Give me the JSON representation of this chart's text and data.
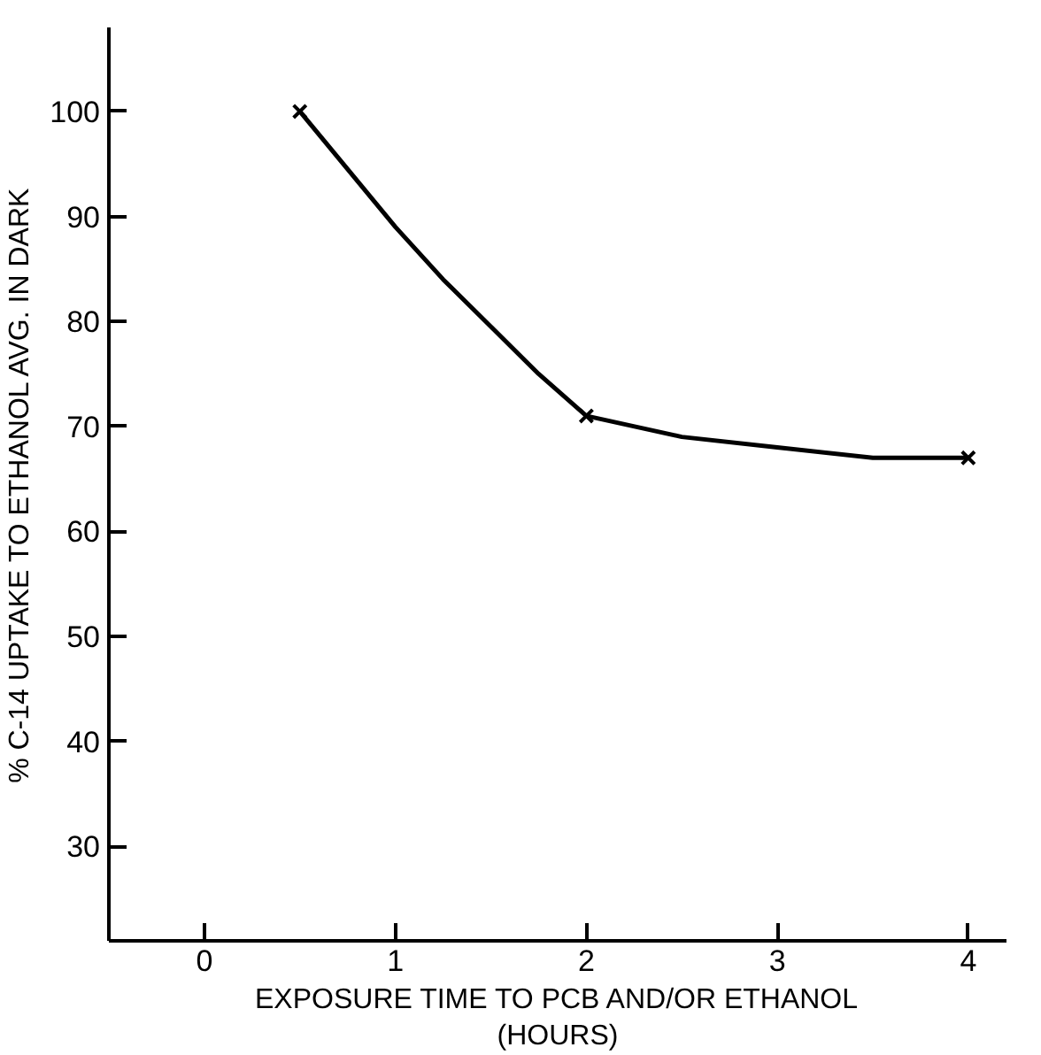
{
  "chart_data": {
    "type": "scatter",
    "xlabel": "EXPOSURE TIME TO PCB AND/OR ETHANOL\n(HOURS)",
    "ylabel": "% C-14 UPTAKE TO ETHANOL AVG. IN DARK",
    "xlim": [
      -0.5,
      4.2
    ],
    "ylim": [
      21,
      108
    ],
    "xticks": [
      0,
      1,
      2,
      3,
      4
    ],
    "yticks": [
      30,
      40,
      50,
      60,
      70,
      80,
      90,
      100
    ],
    "grid": false,
    "series": [
      {
        "color": "#000000",
        "marker": "cross",
        "x": [
          0.5,
          2,
          4
        ],
        "values": [
          100,
          71,
          67
        ]
      },
      {
        "type": "line",
        "color": "#000000",
        "marker": "none",
        "line_style": "solid",
        "x": [
          0.5,
          0.75,
          1,
          1.25,
          1.5,
          1.75,
          2,
          2.5,
          3,
          3.5,
          4
        ],
        "values": [
          100,
          94.5,
          89,
          84,
          79.5,
          75,
          71,
          69,
          68,
          67,
          67
        ]
      }
    ]
  }
}
